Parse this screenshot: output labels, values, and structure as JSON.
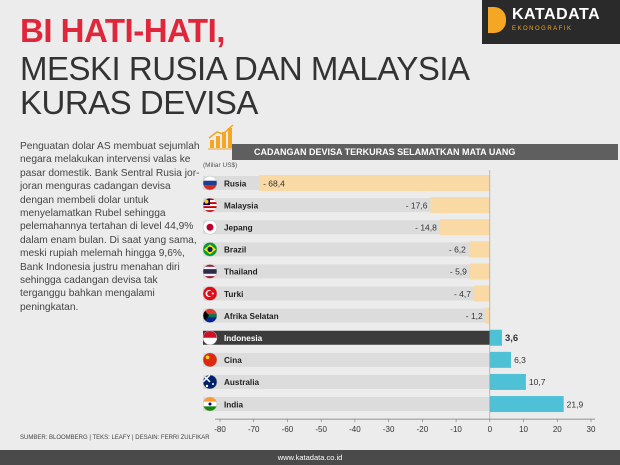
{
  "title": {
    "line1": "BI HATI-HATI,",
    "line2": "MESKI RUSIA DAN MALAYSIA",
    "line3": "KURAS DEVISA"
  },
  "logo": {
    "name": "KATADATA",
    "sub": "EKONOGRAFIK"
  },
  "body_text": "Penguatan dolar AS membuat sejumlah negara melakukan intervensi valas ke pasar domestik. Bank Sentral Rusia jor-joran menguras cadangan devisa dengan membeli dolar untuk menyelamatkan Rubel sehingga pelemahannya tertahan di level 44,9% dalam enam bulan. Di saat yang sama, meski rupiah melemah hingga 9,6%, Bank Indonesia justru menahan diri sehingga cadangan devisa tak terganggu bahkan mengalami peningkatan.",
  "source": "SUMBER: BLOOMBERG | TEKS: LEAFY | DESAIN: FERRI ZULFIKAR",
  "footer": "www.katadata.co.id",
  "colors": {
    "negative": "#f9d9a4",
    "positive": "#4fc1d6",
    "row": "#dcdcdc",
    "indonesia_row": "#3c3c3c",
    "accent": "#e0263a"
  },
  "chart_data": {
    "type": "bar",
    "title": "CADANGAN DEVISA TERKURAS SELAMATKAN MATA UANG",
    "unit": "(Miliar US$)",
    "categories": [
      "Rusia",
      "Malaysia",
      "Jepang",
      "Brazil",
      "Thailand",
      "Turki",
      "Afrika Selatan",
      "Indonesia",
      "Cina",
      "Australia",
      "India"
    ],
    "values": [
      -68.4,
      -17.6,
      -14.8,
      -6.2,
      -5.9,
      -4.7,
      -1.2,
      3.6,
      6.3,
      10.7,
      21.9
    ],
    "labels": [
      "- 68,4",
      "- 17,6",
      "- 14,8",
      "- 6,2",
      "- 5,9",
      "- 4,7",
      "- 1,2",
      "3,6",
      "6,3",
      "10,7",
      "21,9"
    ],
    "highlight": "Indonesia",
    "xlim": [
      -80,
      30
    ],
    "xticks": [
      "-80",
      "-70",
      "-60",
      "-50",
      "-40",
      "-30",
      "-20",
      "-10",
      "0",
      "10",
      "20",
      "30"
    ],
    "flags": [
      "russia-flag",
      "malaysia-flag",
      "japan-flag",
      "brazil-flag",
      "thailand-flag",
      "turkey-flag",
      "south-africa-flag",
      "indonesia-flag",
      "china-flag",
      "australia-flag",
      "india-flag"
    ]
  }
}
